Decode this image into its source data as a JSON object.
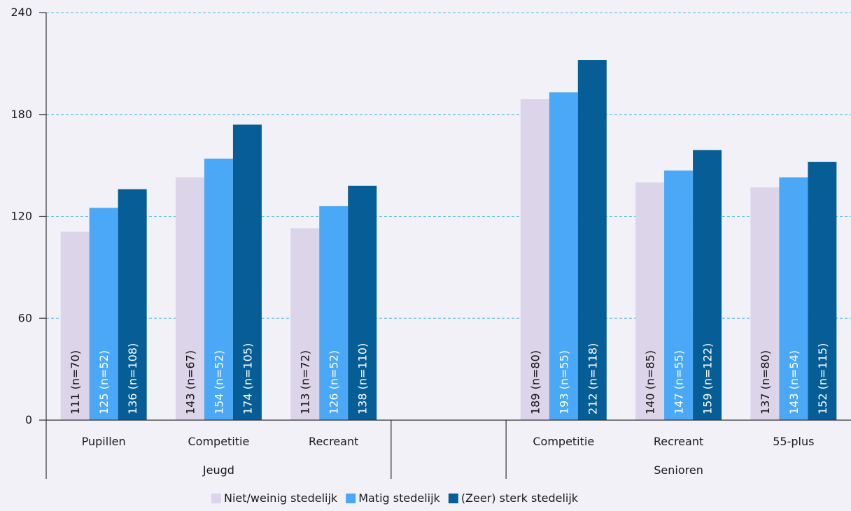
{
  "chart_data": {
    "type": "bar",
    "ylim": [
      0,
      240
    ],
    "yticks": [
      0,
      60,
      120,
      180,
      240
    ],
    "grid": true,
    "legend_position": "bottom",
    "groups": [
      {
        "label": "Jeugd",
        "categories": [
          "Pupillen",
          "Competitie",
          "Recreant"
        ]
      },
      {
        "label": "",
        "categories": [
          ""
        ]
      },
      {
        "label": "Senioren",
        "categories": [
          "Competitie",
          "Recreant",
          "55-plus"
        ]
      }
    ],
    "categories": [
      "Pupillen",
      "Competitie",
      "Recreant",
      "",
      "Competitie",
      "Recreant",
      "55-plus"
    ],
    "series": [
      {
        "name": "Niet/weinig stedelijk",
        "color": "#dcd4e8",
        "label_color": "#111111",
        "values": [
          111,
          143,
          113,
          null,
          189,
          140,
          137
        ],
        "labels": [
          "111 (n=70)",
          "143 (n=67)",
          "113 (n=72)",
          "",
          "189 (n=80)",
          "140 (n=85)",
          "137 (n=80)"
        ]
      },
      {
        "name": "Matig stedelijk",
        "color": "#4aa8f7",
        "label_color": "#ffffff",
        "values": [
          125,
          154,
          126,
          null,
          193,
          147,
          143
        ],
        "labels": [
          "125 (n=52)",
          "154 (n=52)",
          "126 (n=52)",
          "",
          "193 (n=55)",
          "147 (n=55)",
          "143 (n=54)"
        ]
      },
      {
        "name": "(Zeer) sterk stedelijk",
        "color": "#075e96",
        "label_color": "#ffffff",
        "values": [
          136,
          174,
          138,
          null,
          212,
          159,
          152
        ],
        "labels": [
          "136 (n=108)",
          "174 (n=105)",
          "138 (n=110)",
          "",
          "212 (n=118)",
          "159 (n=122)",
          "152 (n=115)"
        ]
      }
    ]
  }
}
